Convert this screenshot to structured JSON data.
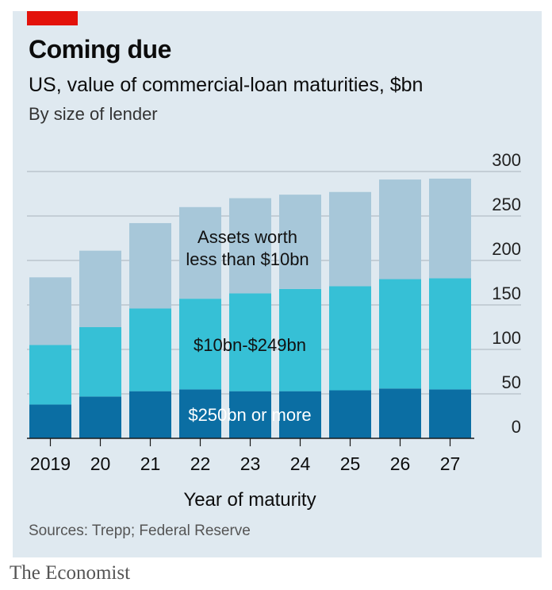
{
  "header": {
    "title": "Coming due",
    "subtitle": "US, value of commercial-loan maturities, $bn",
    "subsubtitle": "By size of lender"
  },
  "footer": {
    "sources": "Sources: Trepp; Federal Reserve",
    "brand": "The Economist"
  },
  "colors": {
    "accent": "#e3120b",
    "background": "#dfe9f0",
    "small_lenders": "#a7c7d9",
    "mid_lenders": "#36c0d6",
    "large_lenders": "#0b6ea3"
  },
  "chart_data": {
    "type": "bar",
    "stacked": true,
    "title": "Coming due",
    "subtitle": "US, value of commercial-loan maturities, $bn",
    "xlabel": "Year of maturity",
    "ylabel": "",
    "categories": [
      "2019",
      "20",
      "21",
      "22",
      "23",
      "24",
      "25",
      "26",
      "27"
    ],
    "ylim": [
      0,
      300
    ],
    "yticks": [
      0,
      50,
      100,
      150,
      200,
      250,
      300
    ],
    "grid": true,
    "y_axis_side": "right",
    "series": [
      {
        "name": "$250bn or more",
        "color": "#0b6ea3",
        "values": [
          38,
          47,
          53,
          55,
          53,
          53,
          54,
          56,
          55
        ]
      },
      {
        "name": "$10bn-$249bn",
        "color": "#36c0d6",
        "values": [
          67,
          78,
          93,
          102,
          110,
          115,
          117,
          123,
          125
        ]
      },
      {
        "name": "Assets worth less than $10bn",
        "color": "#a7c7d9",
        "values": [
          76,
          86,
          96,
          103,
          107,
          106,
          106,
          112,
          112
        ]
      }
    ],
    "series_labels": {
      "small": [
        "Assets worth",
        "less than $10bn"
      ],
      "mid": "$10bn-$249bn",
      "large": "$250bn or more"
    }
  }
}
